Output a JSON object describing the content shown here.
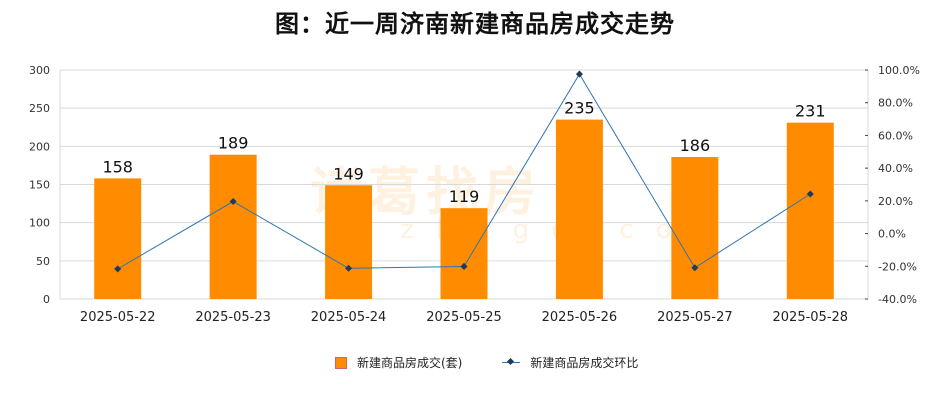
{
  "title": "图：近一周济南新建商品房成交走势",
  "watermark": {
    "text": "诸葛找房",
    "sub": "zhuge.com"
  },
  "colors": {
    "bar": "#FF8C00",
    "line": "#2E75B6",
    "marker": "#1F3B5A",
    "grid": "#D9D9D9"
  },
  "chart_data": {
    "type": "bar+line",
    "title": "图：近一周济南新建商品房成交走势",
    "categories": [
      "2025-05-22",
      "2025-05-23",
      "2025-05-24",
      "2025-05-25",
      "2025-05-26",
      "2025-05-27",
      "2025-05-28"
    ],
    "series": [
      {
        "name": "新建商品房成交(套)",
        "type": "bar",
        "axis": "left",
        "values": [
          158,
          189,
          149,
          119,
          235,
          186,
          231
        ]
      },
      {
        "name": "新建商品房成交环比",
        "type": "line",
        "axis": "right",
        "values": [
          -21.6,
          19.6,
          -21.2,
          -20.1,
          97.5,
          -20.9,
          24.2
        ]
      }
    ],
    "left_axis": {
      "ylim": [
        0,
        300
      ],
      "ticks": [
        "0",
        "50",
        "100",
        "150",
        "200",
        "250",
        "300"
      ]
    },
    "right_axis": {
      "ylim": [
        -40,
        100
      ],
      "ticks": [
        "-40.0%",
        "-20.0%",
        "0.0%",
        "20.0%",
        "40.0%",
        "60.0%",
        "80.0%",
        "100.0%"
      ]
    },
    "grid": true,
    "legend": "bottom"
  }
}
